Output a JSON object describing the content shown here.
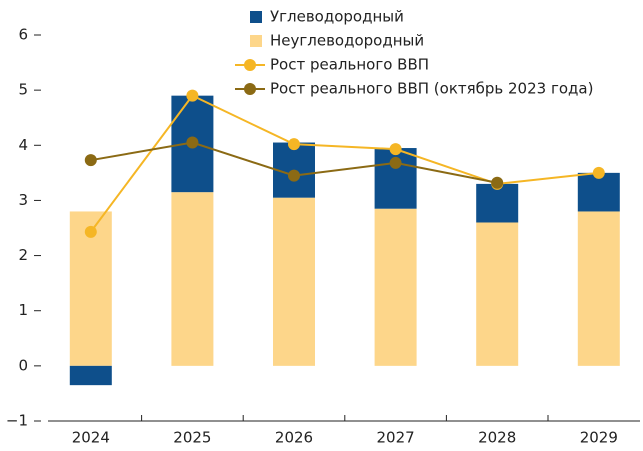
{
  "chart_data": {
    "type": "bar",
    "categories": [
      "2024",
      "2025",
      "2026",
      "2027",
      "2028",
      "2029"
    ],
    "series": [
      {
        "name": "Углеводородный",
        "color": "#0e4f8b",
        "values": [
          -0.35,
          1.75,
          1.0,
          1.1,
          0.7,
          0.7
        ]
      },
      {
        "name": "Неуглеводородный",
        "color": "#fdd68a",
        "values": [
          2.8,
          3.15,
          3.05,
          2.85,
          2.6,
          2.8
        ]
      },
      {
        "name": "Рост реального ВВП",
        "type": "line",
        "color": "#f5b625",
        "values": [
          2.43,
          4.9,
          4.02,
          3.93,
          3.3,
          3.5
        ]
      },
      {
        "name": "Рост реального ВВП (октябрь 2023 года)",
        "type": "line",
        "color": "#8b6a14",
        "values": [
          3.73,
          4.05,
          3.45,
          3.68,
          3.32,
          null
        ]
      }
    ],
    "ylim": [
      -1,
      6
    ],
    "yticks": [
      {
        "value": -1,
        "label": "−1"
      },
      0,
      1,
      2,
      3,
      4,
      5,
      6
    ]
  }
}
